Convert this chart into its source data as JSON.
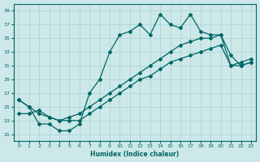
{
  "xlabel": "Humidex (Indice chaleur)",
  "bg_color": "#cce8e8",
  "grid_color": "#b0d4d4",
  "line_color": "#006666",
  "xlim": [
    -0.5,
    23.5
  ],
  "ylim": [
    20.0,
    40.0
  ],
  "yticks": [
    21,
    23,
    25,
    27,
    29,
    31,
    33,
    35,
    37,
    39
  ],
  "xticks": [
    0,
    1,
    2,
    3,
    4,
    5,
    6,
    7,
    8,
    9,
    10,
    11,
    12,
    13,
    14,
    15,
    16,
    17,
    18,
    19,
    20,
    21,
    22,
    23
  ],
  "line1_x": [
    0,
    1,
    2,
    3,
    4,
    5,
    6,
    7,
    8,
    9,
    10,
    11,
    12,
    13,
    14,
    15,
    16,
    17,
    18,
    19,
    20,
    21,
    22,
    23
  ],
  "line1_y": [
    26.0,
    25.0,
    22.5,
    22.5,
    21.5,
    21.5,
    22.5,
    27.0,
    29.0,
    33.0,
    35.5,
    36.0,
    37.0,
    35.5,
    38.5,
    37.0,
    36.5,
    38.5,
    36.0,
    35.5,
    35.5,
    32.5,
    31.0,
    31.5
  ],
  "line2_x": [
    0,
    1,
    2,
    3,
    4,
    5,
    6,
    7,
    8,
    9,
    10,
    11,
    12,
    13,
    14,
    15,
    16,
    17,
    18,
    19,
    20,
    21,
    22,
    23
  ],
  "line2_y": [
    26.0,
    25.0,
    24.0,
    23.5,
    23.0,
    23.5,
    24.0,
    25.0,
    26.0,
    27.0,
    28.0,
    29.0,
    30.0,
    31.0,
    32.0,
    33.0,
    34.0,
    34.5,
    35.0,
    35.0,
    35.5,
    31.0,
    31.5,
    32.0
  ],
  "line3_x": [
    0,
    1,
    2,
    3,
    4,
    5,
    6,
    7,
    8,
    9,
    10,
    11,
    12,
    13,
    14,
    15,
    16,
    17,
    18,
    19,
    20,
    21,
    22,
    23
  ],
  "line3_y": [
    24.0,
    24.0,
    24.5,
    23.5,
    23.0,
    23.0,
    23.0,
    24.0,
    25.0,
    26.0,
    27.0,
    28.0,
    29.0,
    29.5,
    30.5,
    31.5,
    32.0,
    32.5,
    33.0,
    33.5,
    34.0,
    31.0,
    31.0,
    31.5
  ]
}
